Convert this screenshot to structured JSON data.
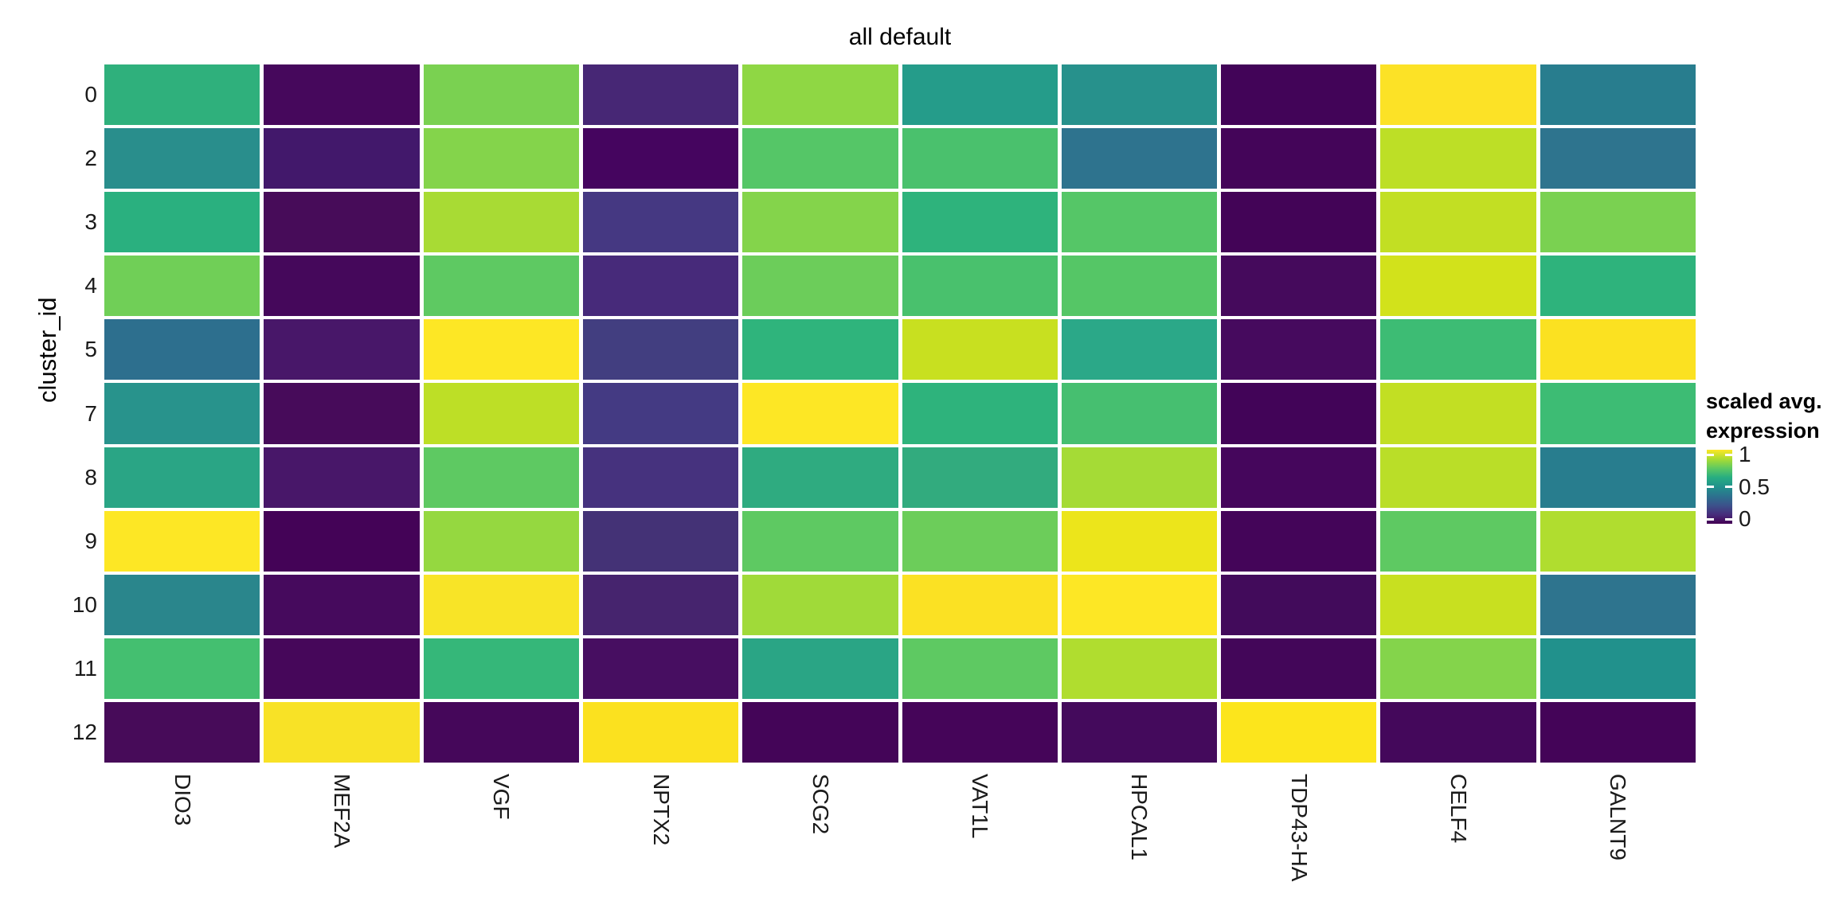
{
  "title": "all default",
  "y_axis": {
    "title": "cluster_id"
  },
  "legend": {
    "title_line1": "scaled avg.",
    "title_line2": "expression",
    "ticks": [
      "1",
      "0.5",
      "0"
    ]
  },
  "palette": {
    "name": "viridis",
    "low": "#440154",
    "mid": "#21918c",
    "high": "#fde725"
  },
  "chart_data": {
    "type": "heatmap",
    "title": "all default",
    "xlabel": "",
    "ylabel": "cluster_id",
    "legend_title": "scaled avg. expression",
    "scale": {
      "min": 0,
      "max": 1,
      "palette": "viridis",
      "legend_tick_values": [
        1,
        0.5,
        0
      ]
    },
    "grid": "off",
    "rows": [
      "0",
      "2",
      "3",
      "4",
      "5",
      "7",
      "8",
      "9",
      "10",
      "11",
      "12"
    ],
    "columns": [
      "DIO3",
      "MEF2A",
      "VGF",
      "NPTX2",
      "SCG2",
      "VAT1L",
      "HPCAL1",
      "TDP43-HA",
      "CELF4",
      "GALNT9"
    ],
    "values": [
      [
        0.7,
        0.02,
        0.82,
        0.09,
        0.85,
        0.58,
        0.52,
        0.01,
        1.0,
        0.4
      ],
      [
        0.48,
        0.07,
        0.83,
        0.02,
        0.75,
        0.73,
        0.35,
        0.01,
        0.91,
        0.34
      ],
      [
        0.67,
        0.03,
        0.88,
        0.16,
        0.83,
        0.68,
        0.75,
        0.01,
        0.92,
        0.82
      ],
      [
        0.8,
        0.02,
        0.77,
        0.1,
        0.79,
        0.73,
        0.75,
        0.03,
        0.94,
        0.68
      ],
      [
        0.33,
        0.06,
        1.0,
        0.18,
        0.69,
        0.93,
        0.62,
        0.03,
        0.71,
        1.0
      ],
      [
        0.52,
        0.03,
        0.91,
        0.17,
        1.0,
        0.68,
        0.73,
        0.01,
        0.92,
        0.71
      ],
      [
        0.6,
        0.06,
        0.77,
        0.13,
        0.64,
        0.64,
        0.87,
        0.02,
        0.9,
        0.4
      ],
      [
        1.0,
        0.01,
        0.85,
        0.12,
        0.77,
        0.79,
        0.97,
        0.01,
        0.77,
        0.89
      ],
      [
        0.46,
        0.03,
        0.99,
        0.09,
        0.86,
        1.0,
        1.0,
        0.03,
        0.93,
        0.34
      ],
      [
        0.72,
        0.02,
        0.7,
        0.04,
        0.6,
        0.77,
        0.89,
        0.02,
        0.83,
        0.5
      ],
      [
        0.03,
        0.99,
        0.02,
        0.99,
        0.01,
        0.01,
        0.03,
        1.0,
        0.02,
        0.01
      ]
    ],
    "cell_colors": [
      [
        "#2fb07c",
        "#46085c",
        "#7ad151",
        "#472775",
        "#8fd744",
        "#259c8a",
        "#27918c",
        "#420458",
        "#fce226",
        "#287d8e"
      ],
      [
        "#298e8c",
        "#42186b",
        "#84d44b",
        "#45055f",
        "#55c667",
        "#4ac16d",
        "#2e738e",
        "#440559",
        "#bddf26",
        "#2e748e"
      ],
      [
        "#2ab07f",
        "#470c59",
        "#a8db34",
        "#453882",
        "#84d44b",
        "#2eb37c",
        "#55c667",
        "#430457",
        "#c2df23",
        "#7ad151"
      ],
      [
        "#70cf57",
        "#45085b",
        "#5ec962",
        "#472a7a",
        "#6ccd5a",
        "#49c16d",
        "#55c666",
        "#450a5c",
        "#d2e21b",
        "#2eb37c"
      ],
      [
        "#2d6f8e",
        "#481769",
        "#fde725",
        "#423e80",
        "#2fb47c",
        "#c8e020",
        "#2ba888",
        "#460a5e",
        "#3dbc74",
        "#fbe121"
      ],
      [
        "#28938c",
        "#470b5a",
        "#bddf26",
        "#443a83",
        "#fde725",
        "#2eb37c",
        "#46bf70",
        "#420458",
        "#c2df23",
        "#3dbc74"
      ],
      [
        "#2aa585",
        "#481769",
        "#5ec962",
        "#46327e",
        "#2fab80",
        "#32ab7e",
        "#a5db36",
        "#45065c",
        "#bade28",
        "#287d8e"
      ],
      [
        "#fde725",
        "#440357",
        "#95d840",
        "#443276",
        "#5ec962",
        "#6ccd5a",
        "#ece51b",
        "#440559",
        "#5ec962",
        "#b0dd2f"
      ],
      [
        "#2a868c",
        "#460a5d",
        "#f8e427",
        "#46246e",
        "#a0da39",
        "#fbe123",
        "#fde725",
        "#420b5b",
        "#c8e020",
        "#2e748e"
      ],
      [
        "#44bf70",
        "#46075a",
        "#35b779",
        "#470e61",
        "#2aa585",
        "#5ec962",
        "#b0dd2f",
        "#430659",
        "#84d44b",
        "#21918c"
      ],
      [
        "#470b59",
        "#f8e226",
        "#45075a",
        "#fbe11f",
        "#440558",
        "#450559",
        "#440a5c",
        "#fce51c",
        "#44085b",
        "#440458"
      ]
    ]
  }
}
